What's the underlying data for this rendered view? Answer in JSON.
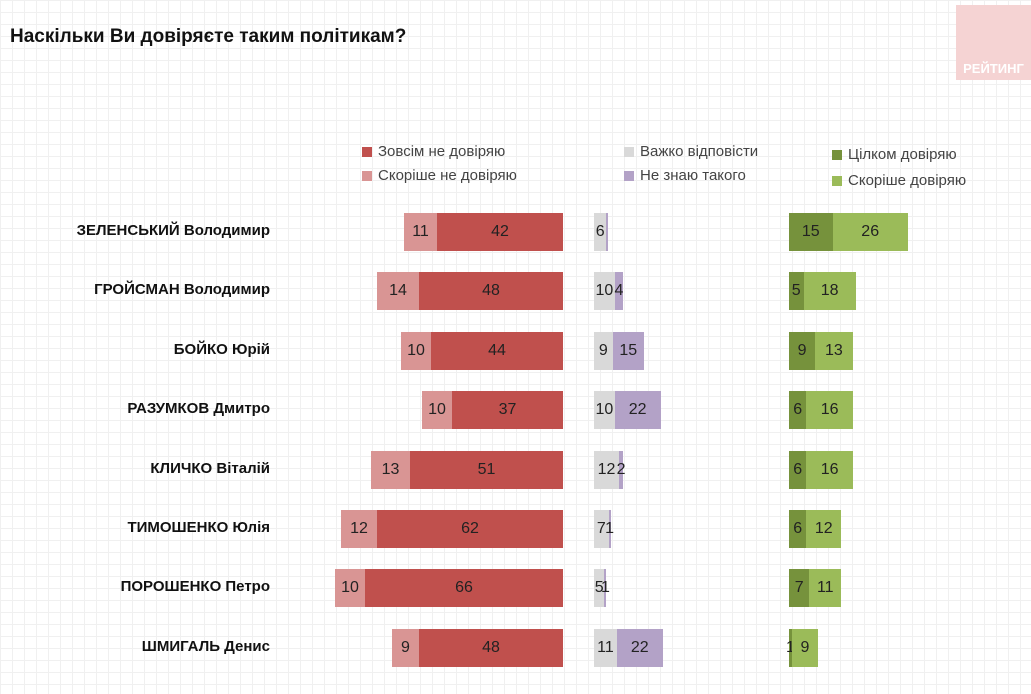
{
  "title": "Наскільки Ви довіряєте таким політикам?",
  "logo_text": "РЕЙТИНГ",
  "chart_data": {
    "type": "bar",
    "title": "Наскільки Ви довіряєте таким політикам?",
    "categories": [
      "ЗЕЛЕНСЬКИЙ Володимир",
      "ГРОЙСМАН Володимир",
      "БОЙКО Юрій",
      "РАЗУМКОВ Дмитро",
      "КЛИЧКО Віталій",
      "ТИМОШЕНКО Юлія",
      "ПОРОШЕНКО Петро",
      "ШМИГАЛЬ Денис"
    ],
    "series": [
      {
        "name": "Зовсім не довіряю",
        "color": "#c0504d",
        "values": [
          42,
          48,
          44,
          37,
          51,
          62,
          66,
          48
        ]
      },
      {
        "name": "Скоріше не довіряю",
        "color": "#d99594",
        "values": [
          11,
          14,
          10,
          10,
          13,
          12,
          10,
          9
        ]
      },
      {
        "name": "Важко відповісти",
        "color": "#d9d9d9",
        "values": [
          6,
          10,
          9,
          10,
          12,
          7,
          5,
          11
        ]
      },
      {
        "name": "Не знаю такого",
        "color": "#b3a2c7",
        "values": [
          null,
          4,
          15,
          22,
          2,
          1,
          1,
          22
        ]
      },
      {
        "name": "Цілком довіряю",
        "color": "#76923c",
        "values": [
          15,
          5,
          9,
          6,
          6,
          6,
          7,
          1
        ]
      },
      {
        "name": "Скоріше довіряю",
        "color": "#9bbb59",
        "values": [
          26,
          18,
          13,
          16,
          16,
          12,
          11,
          9
        ]
      }
    ],
    "legend": "top"
  }
}
